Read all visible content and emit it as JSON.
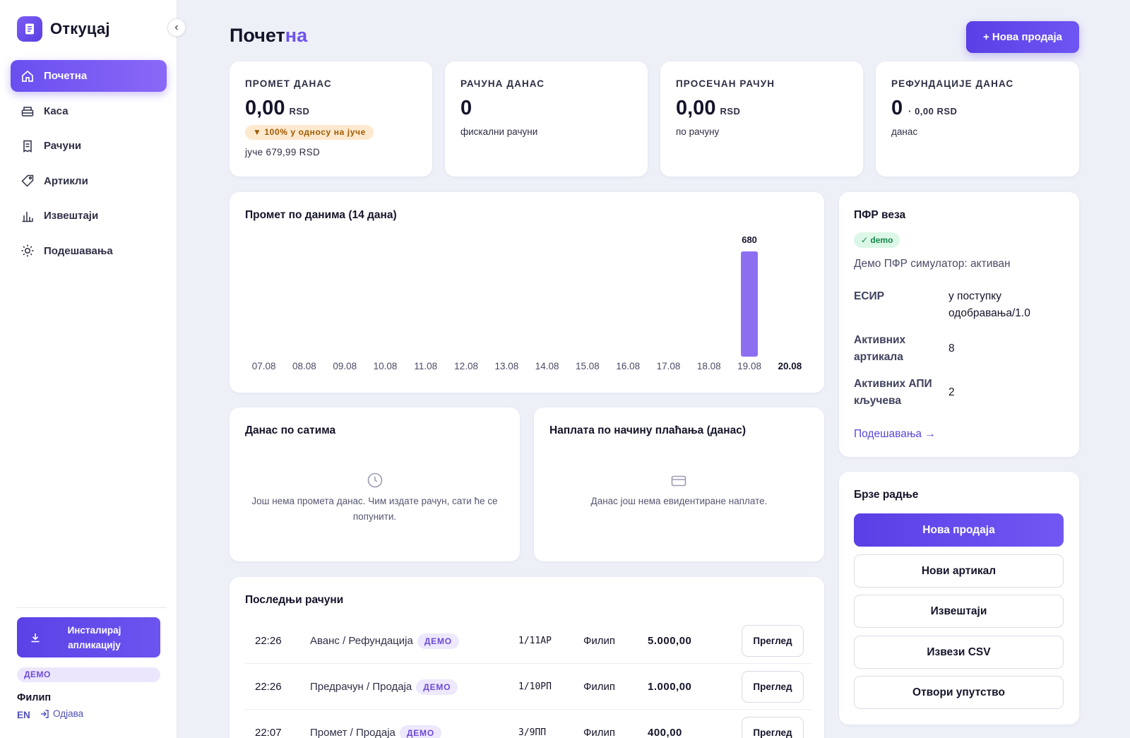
{
  "app": {
    "name": "Откуцај"
  },
  "sidebar": {
    "items": [
      {
        "label": "Почетна",
        "icon": "home-icon"
      },
      {
        "label": "Каса",
        "icon": "register-icon"
      },
      {
        "label": "Рачуни",
        "icon": "receipt-icon"
      },
      {
        "label": "Артикли",
        "icon": "tag-icon"
      },
      {
        "label": "Извештаји",
        "icon": "bar-chart-icon"
      },
      {
        "label": "Подешавања",
        "icon": "sun-gear-icon"
      }
    ],
    "install_label": "Инсталирај апликацију",
    "demo_label": "ДЕМО",
    "user_name": "Филип",
    "lang": "EN",
    "logout_label": "Одјава"
  },
  "header": {
    "title_part1": "Почет",
    "title_part2": "на",
    "new_sale_label": "+ Нова продаја"
  },
  "stats": [
    {
      "label": "ПРОМЕТ ДАНАС",
      "value": "0,00",
      "unit": "RSD",
      "badge": "▼ 100% у односу на јуче",
      "sub": "јуче 679,99 RSD"
    },
    {
      "label": "РАЧУНА ДАНАС",
      "value": "0",
      "unit": "",
      "sub": "фискални рачуни"
    },
    {
      "label": "ПРОСЕЧАН РАЧУН",
      "value": "0,00",
      "unit": "RSD",
      "sub": "по рачуну"
    },
    {
      "label": "РЕФУНДАЦИЈЕ ДАНАС",
      "value": "0",
      "unit": "· 0,00 RSD",
      "sub": "данас"
    }
  ],
  "turnover": {
    "title": "Промет по данима (14 дана)"
  },
  "chart_data": {
    "type": "bar",
    "categories": [
      "07.08",
      "08.08",
      "09.08",
      "10.08",
      "11.08",
      "12.08",
      "13.08",
      "14.08",
      "15.08",
      "16.08",
      "17.08",
      "18.08",
      "19.08",
      "20.08"
    ],
    "values": [
      0,
      0,
      0,
      0,
      0,
      0,
      0,
      0,
      0,
      0,
      0,
      0,
      680,
      0
    ],
    "data_labels": [
      "",
      "",
      "",
      "",
      "",
      "",
      "",
      "",
      "",
      "",
      "",
      "",
      "680",
      ""
    ],
    "highlighted_category": "20.08",
    "title": "Промет по данима (14 дана)",
    "xlabel": "",
    "ylabel": "",
    "ylim": [
      0,
      680
    ],
    "grid": false,
    "bar_color": "#8b6ff0"
  },
  "hourly": {
    "title": "Данас по сатима",
    "empty_text": "Још нема промета данас. Чим издате рачун, сати ће се попунити."
  },
  "payments": {
    "title": "Наплата по начину плаћања (данас)",
    "empty_text": "Данас још нема евидентиране наплате."
  },
  "pfr": {
    "title": "ПФР веза",
    "badge": "✓ demo",
    "status": "Демо ПФР симулатор: активан",
    "rows": [
      {
        "label": "ЕСИР",
        "value": "у поступку одобравања/1.0"
      },
      {
        "label": "Активних артикала",
        "value": "8"
      },
      {
        "label": "Активних АПИ кључева",
        "value": "2"
      }
    ],
    "link": "Подешавања →"
  },
  "quick": {
    "title": "Брзе радње",
    "actions": [
      "Нова продаја",
      "Нови артикал",
      "Извештаји",
      "Извези CSV",
      "Отвори упутство"
    ]
  },
  "receipts": {
    "title": "Последњи рачуни",
    "view_label": "Преглед",
    "demo_label": "ДЕМО",
    "rows": [
      {
        "time": "22:26",
        "type": "Аванс / Рефундација",
        "number": "1/11АР",
        "user": "Филип",
        "amount": "5.000,00"
      },
      {
        "time": "22:26",
        "type": "Предрачун / Продаја",
        "number": "1/10РП",
        "user": "Филип",
        "amount": "1.000,00"
      },
      {
        "time": "22:07",
        "type": "Промет / Продаја",
        "number": "3/9ПП",
        "user": "Филип",
        "amount": "400,00"
      }
    ]
  },
  "colors": {
    "accent": "#6a4ff0",
    "accent_dark": "#5a3fe6",
    "warning_bg": "#fde9cf",
    "success_bg": "#dcf7e7"
  }
}
